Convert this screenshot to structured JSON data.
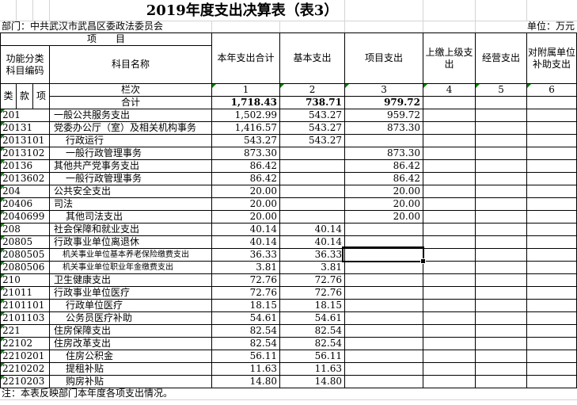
{
  "title": "2019年度支出决算表（表3）",
  "meta": {
    "department_label": "部门：中共武汉市武昌区委政法委员会",
    "unit_label": "单位：万元"
  },
  "header": {
    "project_group": "项　　目",
    "code_label": "功能分类\n科目编码",
    "name_label": "科目名称",
    "col_class": "类",
    "col_section": "款",
    "col_item": "项",
    "lanci_label": "栏次",
    "columns": [
      "本年支出合计",
      "基本支出",
      "项目支出",
      "上缴上级支出",
      "经营支出",
      "对附属单位补助支出"
    ],
    "column_numbers": [
      "1",
      "2",
      "3",
      "4",
      "5",
      "6"
    ]
  },
  "total_row": {
    "label": "合计",
    "total": "1,718.43",
    "basic": "738.71",
    "project": "979.72"
  },
  "rows": [
    {
      "code": "201",
      "name": "一般公共服务支出",
      "indent": 0,
      "small": false,
      "total": "1,502.99",
      "basic": "543.27",
      "project": "959.72"
    },
    {
      "code": "20131",
      "name": "党委办公厅（室）及相关机构事务",
      "indent": 0,
      "small": false,
      "total": "1,416.57",
      "basic": "543.27",
      "project": "873.30"
    },
    {
      "code": "2013101",
      "name": "行政运行",
      "indent": 1,
      "small": false,
      "total": "543.27",
      "basic": "543.27",
      "project": ""
    },
    {
      "code": "2013102",
      "name": "一般行政管理事务",
      "indent": 1,
      "small": false,
      "total": "873.30",
      "basic": "",
      "project": "873.30"
    },
    {
      "code": "20136",
      "name": "其他共产党事务支出",
      "indent": 0,
      "small": false,
      "total": "86.42",
      "basic": "",
      "project": "86.42"
    },
    {
      "code": "2013602",
      "name": "一般行政管理事务",
      "indent": 1,
      "small": false,
      "total": "86.42",
      "basic": "",
      "project": "86.42"
    },
    {
      "code": "204",
      "name": "公共安全支出",
      "indent": 0,
      "small": false,
      "total": "20.00",
      "basic": "",
      "project": "20.00"
    },
    {
      "code": "20406",
      "name": "司法",
      "indent": 0,
      "small": false,
      "total": "20.00",
      "basic": "",
      "project": "20.00"
    },
    {
      "code": "2040699",
      "name": "其他司法支出",
      "indent": 1,
      "small": false,
      "total": "20.00",
      "basic": "",
      "project": "20.00"
    },
    {
      "code": "208",
      "name": "社会保障和就业支出",
      "indent": 0,
      "small": false,
      "total": "40.14",
      "basic": "40.14",
      "project": ""
    },
    {
      "code": "20805",
      "name": "行政事业单位离退休",
      "indent": 0,
      "small": false,
      "total": "40.14",
      "basic": "40.14",
      "project": ""
    },
    {
      "code": "2080505",
      "name": "机关事业单位基本养老保险缴费支出",
      "indent": 1,
      "small": true,
      "total": "36.33",
      "basic": "36.33",
      "project": ""
    },
    {
      "code": "2080506",
      "name": "机关事业单位职业年金缴费支出",
      "indent": 1,
      "small": true,
      "total": "3.81",
      "basic": "3.81",
      "project": ""
    },
    {
      "code": "210",
      "name": "卫生健康支出",
      "indent": 0,
      "small": false,
      "total": "72.76",
      "basic": "72.76",
      "project": ""
    },
    {
      "code": "21011",
      "name": "行政事业单位医疗",
      "indent": 0,
      "small": false,
      "total": "72.76",
      "basic": "72.76",
      "project": ""
    },
    {
      "code": "2101101",
      "name": "行政单位医疗",
      "indent": 1,
      "small": false,
      "total": "18.15",
      "basic": "18.15",
      "project": ""
    },
    {
      "code": "2101103",
      "name": "公务员医疗补助",
      "indent": 1,
      "small": false,
      "total": "54.61",
      "basic": "54.61",
      "project": ""
    },
    {
      "code": "221",
      "name": "住房保障支出",
      "indent": 0,
      "small": false,
      "total": "82.54",
      "basic": "82.54",
      "project": ""
    },
    {
      "code": "22102",
      "name": "住房改革支出",
      "indent": 0,
      "small": false,
      "total": "82.54",
      "basic": "82.54",
      "project": ""
    },
    {
      "code": "2210201",
      "name": "住房公积金",
      "indent": 1,
      "small": false,
      "total": "56.11",
      "basic": "56.11",
      "project": ""
    },
    {
      "code": "2210202",
      "name": "提租补贴",
      "indent": 1,
      "small": false,
      "total": "11.63",
      "basic": "11.63",
      "project": ""
    },
    {
      "code": "2210203",
      "name": "购房补贴",
      "indent": 1,
      "small": false,
      "total": "14.80",
      "basic": "14.80",
      "project": ""
    }
  ],
  "note": "注：本表反映部门本年度各项支出情况。",
  "selection": {
    "row_code": "2080505",
    "column": "项目支出"
  },
  "colors": {
    "error_triangle_green": "#077d07",
    "gridline_gray": "#d4d4d4",
    "table_border": "#000000",
    "background": "#ffffff"
  }
}
